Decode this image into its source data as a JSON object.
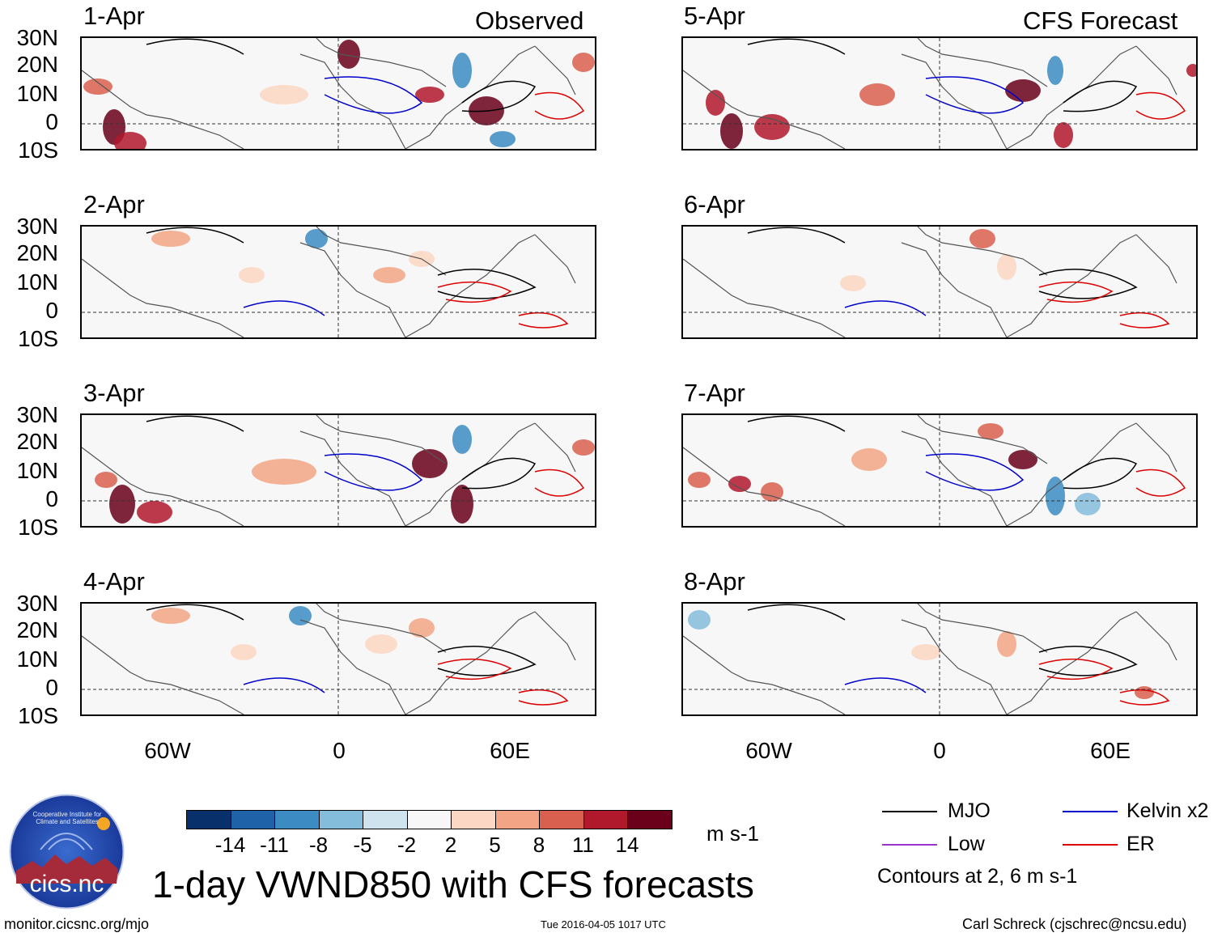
{
  "observed_title": "Observed",
  "forecast_title": "CFS Forecast",
  "panels_observed": [
    {
      "date": "1-Apr"
    },
    {
      "date": "2-Apr"
    },
    {
      "date": "3-Apr"
    },
    {
      "date": "4-Apr"
    }
  ],
  "panels_forecast": [
    {
      "date": "5-Apr"
    },
    {
      "date": "6-Apr"
    },
    {
      "date": "7-Apr"
    },
    {
      "date": "8-Apr"
    }
  ],
  "lat_labels": [
    "30N",
    "20N",
    "10N",
    "0",
    "10S"
  ],
  "lon_labels": [
    "60W",
    "0",
    "60E"
  ],
  "colorbar": {
    "ticks": [
      "-14",
      "-11",
      "-8",
      "-5",
      "-2",
      "2",
      "5",
      "8",
      "11",
      "14"
    ],
    "colors": [
      "#08306b",
      "#1f62a8",
      "#3c8cc3",
      "#84bcdb",
      "#cfe3ef",
      "#f7f7f7",
      "#fcd7c3",
      "#f2a484",
      "#d9604f",
      "#b0182b",
      "#6a001a"
    ],
    "units": "m s-1"
  },
  "legend": {
    "mjo": "MJO",
    "kelvin": "Kelvin x2",
    "low": "Low",
    "er": "ER",
    "note": "Contours at 2, 6 m s-1",
    "colors": {
      "mjo": "#000000",
      "kelvin": "#0000cc",
      "low": "#9933cc",
      "er": "#dd0000"
    }
  },
  "main_title": "1-day VWND850 with CFS forecasts",
  "logo_text": "cics.nc",
  "logo_ring_text": "Cooperative Institute for Climate and Satellites",
  "footer": {
    "left": "monitor.cicsnc.org/mjo",
    "center": "Tue 2016-04-05 1017 UTC",
    "right": "Carl Schreck (cjschrec@ncsu.edu)"
  }
}
